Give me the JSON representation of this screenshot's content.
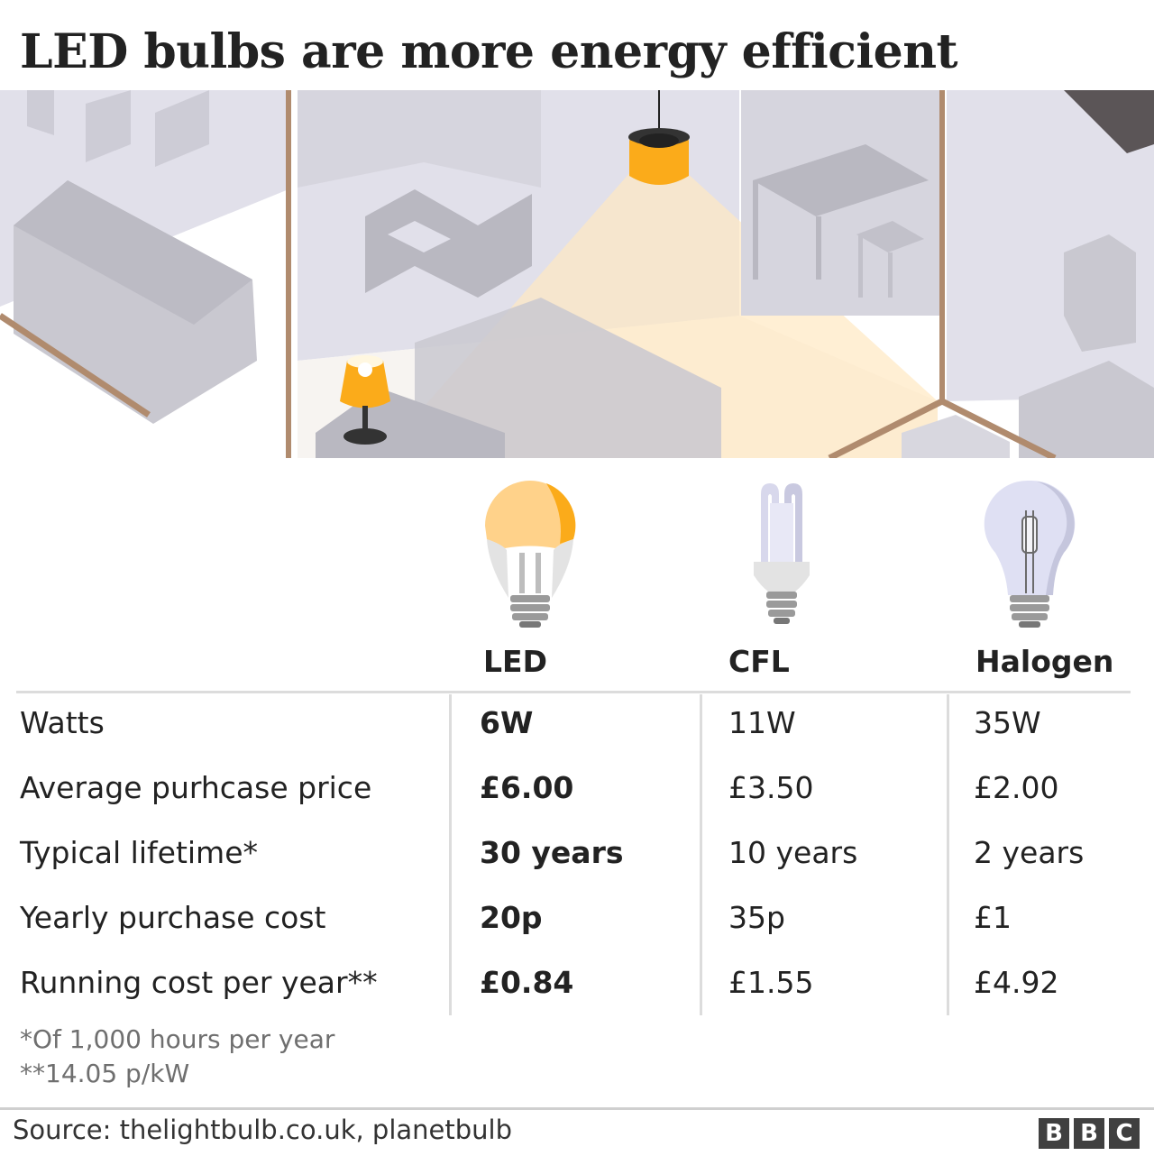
{
  "title": "LED bulbs are more energy efficient",
  "columns": [
    "LED",
    "CFL",
    "Halogen"
  ],
  "rows": [
    {
      "label": "Watts",
      "values": [
        "6W",
        "11W",
        "35W"
      ]
    },
    {
      "label": "Average purhcase price",
      "values": [
        "£6.00",
        "£3.50",
        "£2.00"
      ]
    },
    {
      "label": "Typical lifetime*",
      "values": [
        "30 years",
        "10 years",
        "2 years"
      ]
    },
    {
      "label": "Yearly purchase cost",
      "values": [
        "20p",
        "35p",
        "£1"
      ]
    },
    {
      "label": "Running cost per year**",
      "values": [
        "£0.84",
        "£1.55",
        "£4.92"
      ]
    }
  ],
  "notes": [
    "*Of 1,000 hours per year",
    "**14.05 p/kW"
  ],
  "source": "Source: thelightbulb.co.uk, planetbulb",
  "logo": [
    "B",
    "B",
    "C"
  ],
  "icons": [
    "room-illustration",
    "led-bulb-icon",
    "cfl-bulb-icon",
    "halogen-bulb-icon"
  ],
  "colors": {
    "accent": "#fbab1a",
    "bulb_glow": "#ffd28a",
    "frame": "#b08b6e"
  }
}
